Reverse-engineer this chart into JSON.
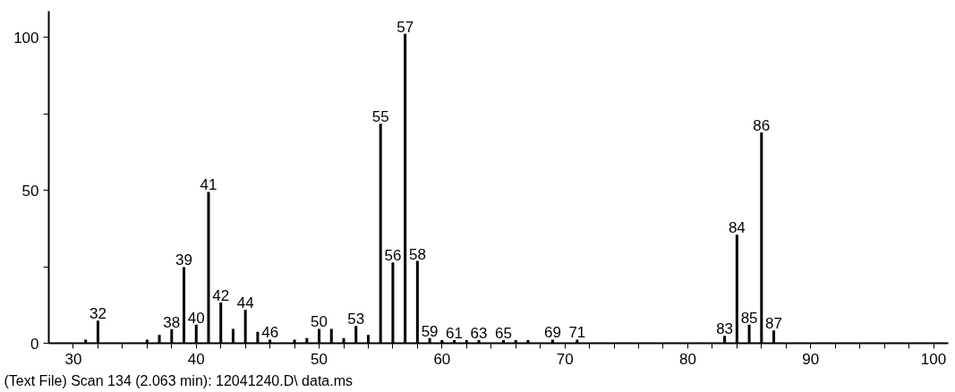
{
  "chart_data": {
    "type": "bar",
    "x": [
      31,
      32,
      36,
      37,
      38,
      39,
      40,
      41,
      42,
      43,
      44,
      45,
      46,
      48,
      49,
      50,
      51,
      52,
      53,
      54,
      55,
      56,
      57,
      58,
      59,
      60,
      61,
      62,
      63,
      65,
      66,
      67,
      69,
      71,
      83,
      84,
      85,
      86,
      87
    ],
    "values": [
      1.2,
      7.4,
      1.2,
      2.7,
      4.6,
      24.9,
      6.1,
      49.5,
      13.3,
      4.7,
      10.9,
      3.7,
      1.2,
      1.2,
      1.7,
      4.7,
      4.7,
      1.7,
      5.7,
      2.7,
      71.8,
      26.4,
      101.2,
      26.9,
      1.7,
      1,
      1,
      1,
      1,
      1,
      1,
      1,
      1.2,
      1.2,
      2.4,
      35.5,
      6.1,
      68.9,
      4.2
    ],
    "color": "#000000",
    "xlim": [
      28,
      101.2
    ],
    "xticks": [
      30,
      {
        "value": 32,
        "label": null
      },
      {
        "value": 34,
        "label": null
      },
      {
        "value": 36,
        "label": null
      },
      {
        "value": 38,
        "label": null
      },
      40,
      {
        "value": 42,
        "label": null
      },
      {
        "value": 44,
        "label": null
      },
      {
        "value": 46,
        "label": null
      },
      {
        "value": 48,
        "label": null
      },
      50,
      {
        "value": 52,
        "label": null
      },
      {
        "value": 54,
        "label": null
      },
      {
        "value": 56,
        "label": null
      },
      {
        "value": 58,
        "label": null
      },
      60,
      {
        "value": 62,
        "label": null
      },
      {
        "value": 64,
        "label": null
      },
      {
        "value": 66,
        "label": null
      },
      {
        "value": 68,
        "label": null
      },
      70,
      {
        "value": 72,
        "label": null
      },
      {
        "value": 74,
        "label": null
      },
      {
        "value": 76,
        "label": null
      },
      {
        "value": 78,
        "label": null
      },
      80,
      {
        "value": 82,
        "label": null
      },
      {
        "value": 84,
        "label": null
      },
      {
        "value": 86,
        "label": null
      },
      {
        "value": 88,
        "label": null
      },
      90,
      {
        "value": 92,
        "label": null
      },
      {
        "value": 94,
        "label": null
      },
      {
        "value": 96,
        "label": null
      },
      {
        "value": 98,
        "label": null
      },
      100
    ],
    "ylim": [
      0,
      108.6
    ],
    "yticks": [
      0,
      {
        "value": 25,
        "label": null
      },
      50,
      {
        "value": 75,
        "label": null
      },
      100
    ],
    "grid": false,
    "annotations": [
      {
        "text": "32",
        "x": 32,
        "y": 7.4
      },
      {
        "text": "38",
        "x": 38,
        "y": 4.6
      },
      {
        "text": "39",
        "x": 39,
        "y": 24.9
      },
      {
        "text": "40",
        "x": 40,
        "y": 6.1
      },
      {
        "text": "41",
        "x": 41,
        "y": 49.5
      },
      {
        "text": "42",
        "x": 42,
        "y": 13.3
      },
      {
        "text": "44",
        "x": 44,
        "y": 10.9
      },
      {
        "text": "46",
        "x": 46,
        "y": 1.2
      },
      {
        "text": "50",
        "x": 50,
        "y": 4.7
      },
      {
        "text": "53",
        "x": 53,
        "y": 5.7
      },
      {
        "text": "55",
        "x": 55,
        "y": 71.8
      },
      {
        "text": "56",
        "x": 56,
        "y": 26.4
      },
      {
        "text": "57",
        "x": 57,
        "y": 101.2
      },
      {
        "text": "58",
        "x": 58,
        "y": 26.9
      },
      {
        "text": "59",
        "x": 59,
        "y": 1.7
      },
      {
        "text": "61",
        "x": 61,
        "y": 1
      },
      {
        "text": "63",
        "x": 63,
        "y": 1
      },
      {
        "text": "65",
        "x": 65,
        "y": 1
      },
      {
        "text": "69",
        "x": 69,
        "y": 1.2
      },
      {
        "text": "71",
        "x": 71,
        "y": 1.2
      },
      {
        "text": "83",
        "x": 83,
        "y": 2.4
      },
      {
        "text": "84",
        "x": 84,
        "y": 35.5
      },
      {
        "text": "85",
        "x": 85,
        "y": 6.1
      },
      {
        "text": "86",
        "x": 86,
        "y": 68.9
      },
      {
        "text": "87",
        "x": 87,
        "y": 4.2
      },
      "(Text File) Scan 134 (2.063 min): 12041240.D\\ data.ms"
    ]
  }
}
